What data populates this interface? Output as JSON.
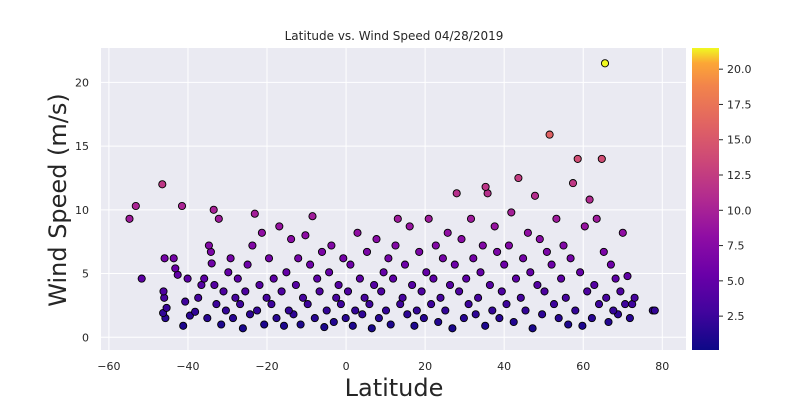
{
  "chart_data": {
    "type": "scatter",
    "title": "Latitude vs. Wind Speed 04/28/2019",
    "xlabel": "Latitude",
    "ylabel": "Wind Speed (m/s)",
    "xlim": [
      -62,
      86
    ],
    "ylim": [
      -1.0,
      22.7
    ],
    "xticks": [
      -60,
      -40,
      -20,
      0,
      20,
      40,
      60,
      80
    ],
    "yticks": [
      0,
      5,
      10,
      15,
      20
    ],
    "grid": true,
    "background": "#eaeaf2",
    "marker_edge_color": "#000000",
    "colormap": "plasma",
    "color_by": "y",
    "colorbar": {
      "range": [
        0.1,
        21.5
      ],
      "ticks": [
        2.5,
        5.0,
        7.5,
        10.0,
        12.5,
        15.0,
        17.5,
        20.0
      ],
      "tick_labels": [
        "2.5",
        "5.0",
        "7.5",
        "10.0",
        "12.5",
        "15.0",
        "17.5",
        "20.0"
      ]
    },
    "points": [
      [
        -54.8,
        9.3
      ],
      [
        -53.2,
        10.3
      ],
      [
        -51.7,
        4.6
      ],
      [
        -46.5,
        12.0
      ],
      [
        -45.9,
        6.2
      ],
      [
        -46.2,
        3.6
      ],
      [
        -46.0,
        3.1
      ],
      [
        -46.3,
        1.9
      ],
      [
        -45.7,
        1.5
      ],
      [
        -45.4,
        2.3
      ],
      [
        -43.6,
        6.2
      ],
      [
        -43.2,
        5.4
      ],
      [
        -42.6,
        4.9
      ],
      [
        -41.5,
        10.3
      ],
      [
        -41.2,
        0.9
      ],
      [
        -40.7,
        2.8
      ],
      [
        -40.1,
        4.6
      ],
      [
        -39.5,
        1.7
      ],
      [
        -38.2,
        2.0
      ],
      [
        -37.4,
        3.1
      ],
      [
        -36.6,
        4.1
      ],
      [
        -35.9,
        4.6
      ],
      [
        -35.1,
        1.5
      ],
      [
        -34.7,
        7.2
      ],
      [
        -34.2,
        6.7
      ],
      [
        -34.0,
        5.8
      ],
      [
        -33.5,
        10.0
      ],
      [
        -33.3,
        4.1
      ],
      [
        -32.8,
        2.6
      ],
      [
        -32.2,
        9.3
      ],
      [
        -31.6,
        1.0
      ],
      [
        -31.0,
        3.6
      ],
      [
        -30.4,
        2.1
      ],
      [
        -29.8,
        5.1
      ],
      [
        -29.2,
        6.2
      ],
      [
        -28.6,
        1.5
      ],
      [
        -28.0,
        3.1
      ],
      [
        -27.4,
        4.6
      ],
      [
        -26.8,
        2.6
      ],
      [
        -26.1,
        0.7
      ],
      [
        -25.5,
        3.6
      ],
      [
        -24.9,
        5.7
      ],
      [
        -24.3,
        1.8
      ],
      [
        -23.7,
        7.2
      ],
      [
        -23.1,
        9.7
      ],
      [
        -22.5,
        2.1
      ],
      [
        -21.9,
        4.1
      ],
      [
        -21.3,
        8.2
      ],
      [
        -20.7,
        1.0
      ],
      [
        -20.1,
        3.1
      ],
      [
        -19.5,
        6.2
      ],
      [
        -18.9,
        2.6
      ],
      [
        -18.3,
        4.6
      ],
      [
        -17.6,
        1.5
      ],
      [
        -16.9,
        8.7
      ],
      [
        -16.3,
        3.6
      ],
      [
        -15.7,
        0.9
      ],
      [
        -15.1,
        5.1
      ],
      [
        -14.5,
        2.1
      ],
      [
        -13.9,
        7.7
      ],
      [
        -13.3,
        1.8
      ],
      [
        -12.7,
        4.1
      ],
      [
        -12.1,
        6.2
      ],
      [
        -11.5,
        1.0
      ],
      [
        -10.9,
        3.1
      ],
      [
        -10.3,
        8.0
      ],
      [
        -9.7,
        2.6
      ],
      [
        -9.1,
        5.7
      ],
      [
        -8.5,
        9.5
      ],
      [
        -7.9,
        1.5
      ],
      [
        -7.3,
        4.6
      ],
      [
        -6.7,
        3.6
      ],
      [
        -6.1,
        6.7
      ],
      [
        -5.5,
        0.8
      ],
      [
        -4.9,
        2.1
      ],
      [
        -4.3,
        5.1
      ],
      [
        -3.7,
        7.2
      ],
      [
        -3.1,
        1.2
      ],
      [
        -2.5,
        3.1
      ],
      [
        -1.9,
        4.1
      ],
      [
        -1.3,
        2.6
      ],
      [
        -0.7,
        6.2
      ],
      [
        -0.1,
        1.5
      ],
      [
        0.5,
        3.6
      ],
      [
        1.1,
        5.7
      ],
      [
        1.7,
        0.9
      ],
      [
        2.3,
        2.1
      ],
      [
        2.9,
        8.2
      ],
      [
        3.5,
        4.6
      ],
      [
        4.1,
        1.8
      ],
      [
        4.7,
        3.1
      ],
      [
        5.3,
        6.7
      ],
      [
        5.9,
        2.6
      ],
      [
        6.5,
        0.7
      ],
      [
        7.1,
        4.1
      ],
      [
        7.7,
        7.7
      ],
      [
        8.3,
        1.5
      ],
      [
        8.9,
        3.6
      ],
      [
        9.5,
        5.1
      ],
      [
        10.1,
        2.1
      ],
      [
        10.7,
        6.2
      ],
      [
        11.3,
        1.0
      ],
      [
        11.9,
        4.6
      ],
      [
        12.5,
        7.2
      ],
      [
        13.1,
        9.3
      ],
      [
        13.7,
        2.6
      ],
      [
        14.3,
        3.1
      ],
      [
        14.9,
        5.7
      ],
      [
        15.5,
        1.8
      ],
      [
        16.1,
        8.7
      ],
      [
        16.7,
        4.1
      ],
      [
        17.3,
        0.9
      ],
      [
        17.9,
        2.1
      ],
      [
        18.5,
        6.7
      ],
      [
        19.1,
        3.6
      ],
      [
        19.7,
        1.5
      ],
      [
        20.3,
        5.1
      ],
      [
        20.9,
        9.3
      ],
      [
        21.5,
        2.6
      ],
      [
        22.1,
        4.6
      ],
      [
        22.7,
        7.2
      ],
      [
        23.3,
        1.2
      ],
      [
        23.9,
        3.1
      ],
      [
        24.5,
        6.2
      ],
      [
        25.1,
        2.1
      ],
      [
        25.7,
        8.2
      ],
      [
        26.3,
        4.1
      ],
      [
        26.9,
        0.7
      ],
      [
        27.5,
        5.7
      ],
      [
        28.0,
        11.3
      ],
      [
        28.6,
        3.6
      ],
      [
        29.2,
        7.7
      ],
      [
        29.8,
        1.5
      ],
      [
        30.4,
        4.6
      ],
      [
        31.0,
        2.6
      ],
      [
        31.6,
        9.3
      ],
      [
        32.2,
        6.2
      ],
      [
        32.8,
        1.8
      ],
      [
        33.4,
        3.1
      ],
      [
        34.0,
        5.1
      ],
      [
        34.6,
        7.2
      ],
      [
        35.2,
        0.9
      ],
      [
        35.3,
        11.8
      ],
      [
        35.8,
        11.3
      ],
      [
        36.4,
        4.1
      ],
      [
        37.0,
        2.1
      ],
      [
        37.6,
        8.7
      ],
      [
        38.2,
        6.7
      ],
      [
        38.8,
        1.5
      ],
      [
        39.4,
        3.6
      ],
      [
        40.0,
        5.7
      ],
      [
        40.6,
        2.6
      ],
      [
        41.2,
        7.2
      ],
      [
        41.8,
        9.8
      ],
      [
        42.4,
        1.2
      ],
      [
        43.0,
        4.6
      ],
      [
        43.6,
        12.5
      ],
      [
        44.2,
        3.1
      ],
      [
        44.8,
        6.2
      ],
      [
        45.4,
        2.1
      ],
      [
        46.0,
        8.2
      ],
      [
        46.6,
        5.1
      ],
      [
        47.2,
        0.7
      ],
      [
        47.8,
        11.1
      ],
      [
        48.4,
        4.1
      ],
      [
        49.0,
        7.7
      ],
      [
        49.6,
        1.8
      ],
      [
        50.2,
        3.6
      ],
      [
        50.8,
        6.7
      ],
      [
        51.5,
        15.9
      ],
      [
        52.0,
        5.7
      ],
      [
        52.6,
        2.6
      ],
      [
        53.2,
        9.3
      ],
      [
        53.8,
        1.5
      ],
      [
        54.4,
        4.6
      ],
      [
        55.0,
        7.2
      ],
      [
        55.6,
        3.1
      ],
      [
        56.2,
        1.0
      ],
      [
        56.8,
        6.2
      ],
      [
        57.4,
        12.1
      ],
      [
        58.0,
        2.1
      ],
      [
        58.6,
        14.0
      ],
      [
        59.2,
        5.1
      ],
      [
        59.8,
        0.9
      ],
      [
        60.4,
        8.7
      ],
      [
        61.0,
        3.6
      ],
      [
        61.6,
        10.8
      ],
      [
        62.2,
        1.5
      ],
      [
        62.8,
        4.1
      ],
      [
        63.4,
        9.3
      ],
      [
        64.0,
        2.6
      ],
      [
        64.7,
        14.0
      ],
      [
        65.2,
        6.7
      ],
      [
        65.5,
        21.5
      ],
      [
        65.8,
        3.1
      ],
      [
        66.4,
        1.2
      ],
      [
        67.0,
        5.7
      ],
      [
        67.6,
        2.1
      ],
      [
        68.2,
        4.6
      ],
      [
        68.8,
        1.8
      ],
      [
        69.4,
        3.6
      ],
      [
        70.0,
        8.2
      ],
      [
        70.6,
        2.6
      ],
      [
        71.2,
        4.8
      ],
      [
        71.8,
        1.5
      ],
      [
        72.4,
        2.6
      ],
      [
        73.0,
        3.1
      ],
      [
        77.6,
        2.1
      ],
      [
        78.1,
        2.1
      ]
    ]
  }
}
